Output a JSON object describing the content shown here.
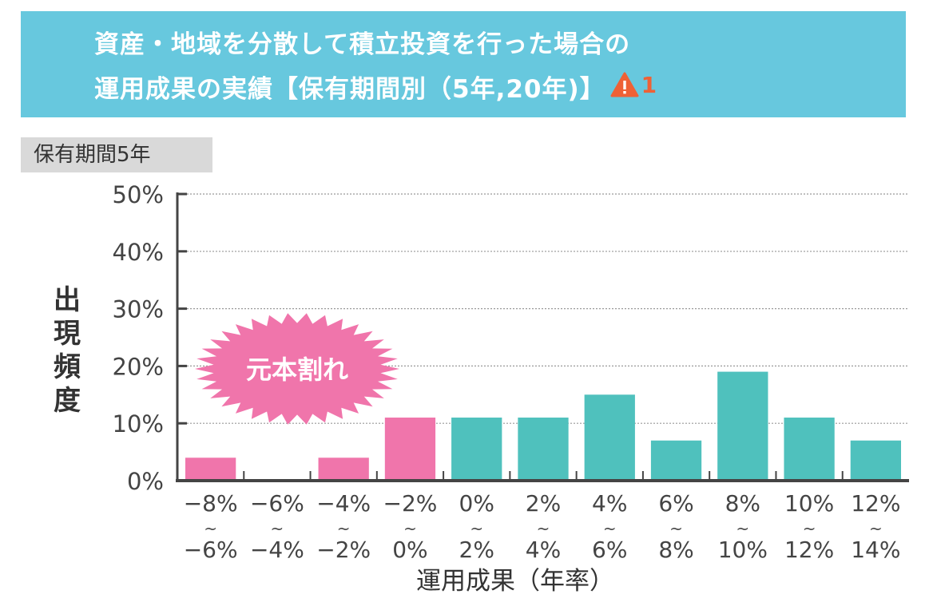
{
  "header": {
    "title_line1": "資産・地域を分散して積立投資を行った場合の",
    "title_line2": "運用成果の実績【保有期間別（5年,20年)】",
    "warning_icon": "warning-triangle-icon",
    "warning_number": "1",
    "background_color": "#67c8de"
  },
  "period_tag": "保有期間5年",
  "callout": "元本割れ",
  "chart_data": {
    "type": "bar",
    "title": "",
    "xlabel": "運用成果（年率）",
    "ylabel": "出現頻度",
    "ylim": [
      0,
      50
    ],
    "yticks": [
      "0%",
      "10%",
      "20%",
      "30%",
      "40%",
      "50%"
    ],
    "grid": true,
    "categories": [
      [
        "−8%",
        "〜",
        "−6%"
      ],
      [
        "−6%",
        "〜",
        "−4%"
      ],
      [
        "−4%",
        "〜",
        "−2%"
      ],
      [
        "−2%",
        "〜",
        "0%"
      ],
      [
        "0%",
        "〜",
        "2%"
      ],
      [
        "2%",
        "〜",
        "4%"
      ],
      [
        "4%",
        "〜",
        "6%"
      ],
      [
        "6%",
        "〜",
        "8%"
      ],
      [
        "8%",
        "〜",
        "10%"
      ],
      [
        "10%",
        "〜",
        "12%"
      ],
      [
        "12%",
        "〜",
        "14%"
      ]
    ],
    "values": [
      4,
      0,
      4,
      11,
      11,
      11,
      15,
      7,
      19,
      11,
      7
    ],
    "colors": {
      "loss": "#f075ab",
      "gain": "#4fc1bd"
    },
    "loss_categories": 4
  }
}
